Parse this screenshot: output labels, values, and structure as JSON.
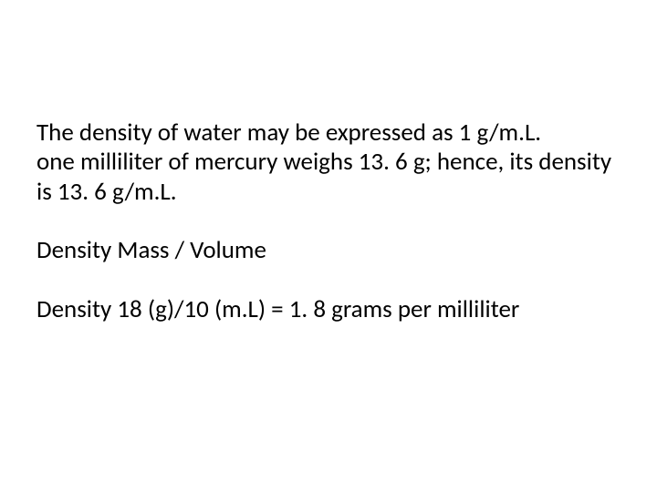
{
  "slide": {
    "background_color": "#ffffff",
    "text_color": "#000000",
    "font_family": "Calibri, Arial, sans-serif",
    "font_size_pt": 20,
    "paragraphs": {
      "p1": "The density of water may be expressed as 1 g/m.L.",
      "p2": "one milliliter of mercury weighs 13. 6 g; hence, its density is 13. 6 g/m.L.",
      "p3": "Density Mass / Volume",
      "p4": "Density  18 (g)/10 (m.L) = 1. 8 grams per milliliter"
    }
  }
}
